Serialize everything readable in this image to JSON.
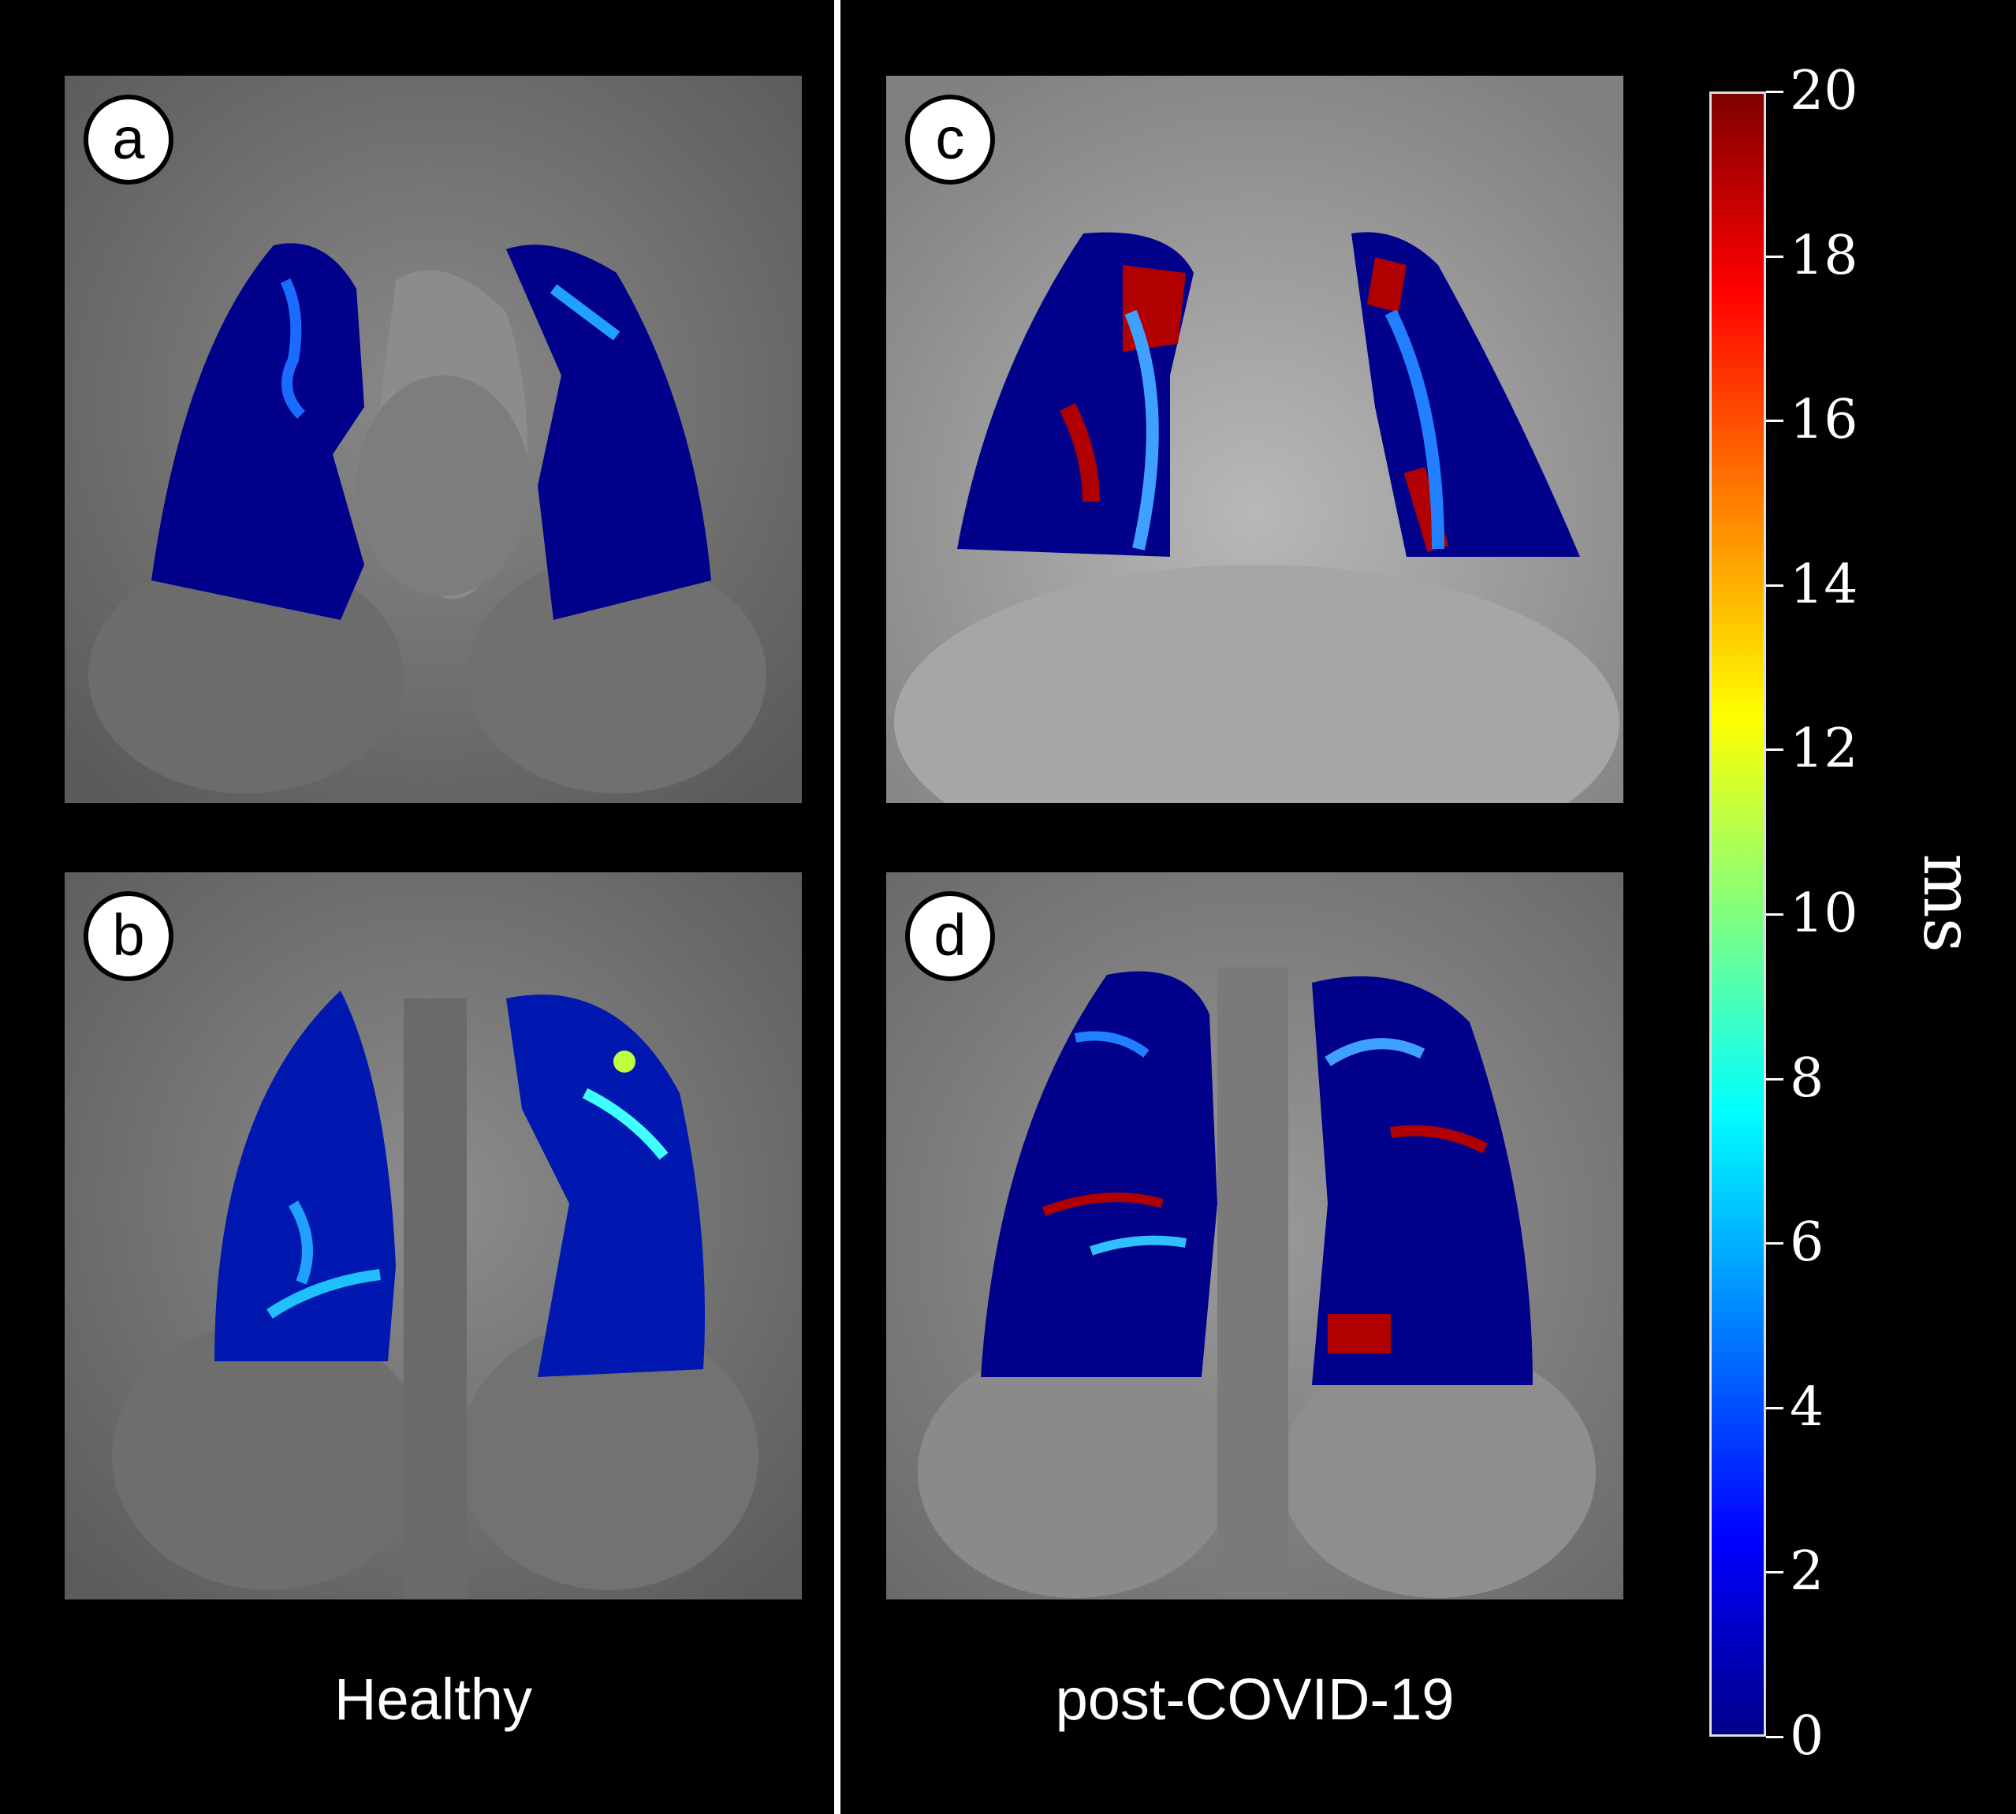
{
  "panels": [
    {
      "letter": "a",
      "overlay": "low"
    },
    {
      "letter": "b",
      "overlay": "low"
    },
    {
      "letter": "c",
      "overlay": "high"
    },
    {
      "letter": "d",
      "overlay": "mixed"
    }
  ],
  "groups": {
    "left": "Healthy",
    "right": "post-COVID-19"
  },
  "colorbar": {
    "unit": "ms",
    "min": 0,
    "max": 20,
    "ticks": [
      "0",
      "2",
      "4",
      "6",
      "8",
      "10",
      "12",
      "14",
      "16",
      "18",
      "20"
    ],
    "colormap": "jet"
  },
  "colors": {
    "low": "#0000c8",
    "mid": "#00c8ff",
    "high": "#b00000",
    "background": "#000000"
  }
}
